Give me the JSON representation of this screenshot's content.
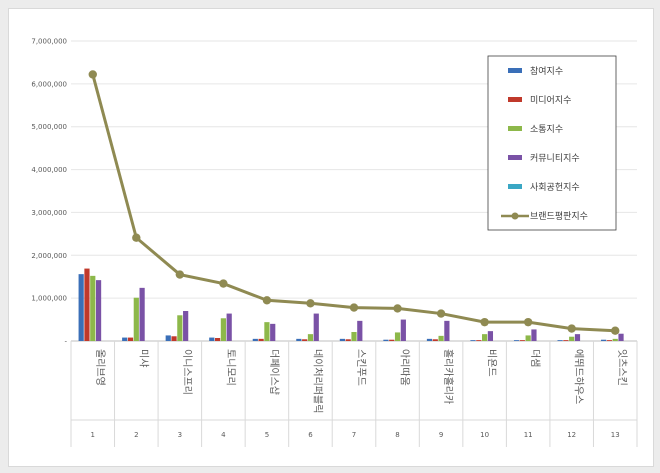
{
  "chart_data": {
    "type": "bar",
    "title": "",
    "xlabel": "",
    "ylabel": "",
    "ylim": [
      0,
      7000000
    ],
    "y_ticks": [
      0,
      1000000,
      2000000,
      3000000,
      4000000,
      5000000,
      6000000,
      7000000
    ],
    "y_tick_labels": [
      "-",
      "1,000,000",
      "2,000,000",
      "3,000,000",
      "4,000,000",
      "5,000,000",
      "6,000,000",
      "7,000,000"
    ],
    "grid": true,
    "legend_position": "top-right",
    "categories": [
      "올리브영",
      "미샤",
      "이니스프리",
      "토니모리",
      "더페이스샵",
      "네이처리퍼블릭",
      "스킨푸드",
      "아리따움",
      "홀리카홀리카",
      "비욘드",
      "더샘",
      "에뛰드하우스",
      "잇츠스킨"
    ],
    "rank_labels": [
      "1",
      "2",
      "3",
      "4",
      "5",
      "6",
      "7",
      "8",
      "9",
      "10",
      "11",
      "12",
      "13"
    ],
    "series": [
      {
        "name": "참여지수",
        "type": "bar",
        "color": "#3a6fb8",
        "values": [
          1560000,
          80000,
          130000,
          80000,
          50000,
          50000,
          50000,
          30000,
          50000,
          20000,
          20000,
          20000,
          30000
        ]
      },
      {
        "name": "미디어지수",
        "type": "bar",
        "color": "#c0392b",
        "values": [
          1690000,
          80000,
          110000,
          70000,
          50000,
          40000,
          40000,
          30000,
          40000,
          20000,
          20000,
          20000,
          20000
        ]
      },
      {
        "name": "소통지수",
        "type": "bar",
        "color": "#8db84a",
        "values": [
          1520000,
          1010000,
          600000,
          530000,
          440000,
          160000,
          210000,
          200000,
          120000,
          160000,
          130000,
          100000,
          50000
        ]
      },
      {
        "name": "커뮤니티지수",
        "type": "bar",
        "color": "#7a52a6",
        "values": [
          1420000,
          1240000,
          700000,
          640000,
          400000,
          640000,
          470000,
          500000,
          470000,
          230000,
          270000,
          160000,
          170000
        ]
      },
      {
        "name": "사회공헌지수",
        "type": "bar",
        "color": "#3aa7c4",
        "values": [
          0,
          0,
          0,
          0,
          0,
          0,
          0,
          0,
          0,
          0,
          0,
          0,
          0
        ]
      },
      {
        "name": "브랜드평판지수",
        "type": "line",
        "color": "#8f8a52",
        "values": [
          6220000,
          2410000,
          1550000,
          1340000,
          950000,
          880000,
          780000,
          760000,
          640000,
          440000,
          440000,
          290000,
          240000
        ]
      }
    ]
  }
}
